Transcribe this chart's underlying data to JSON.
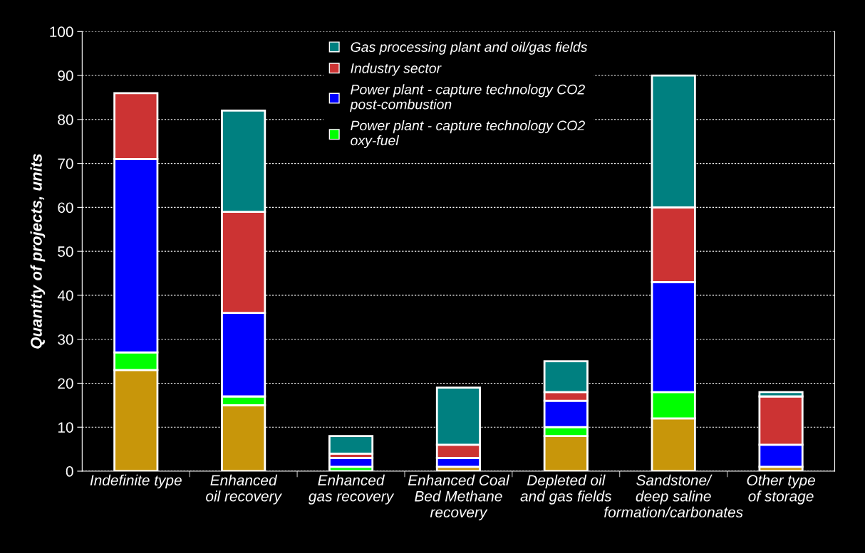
{
  "chart_data": {
    "type": "bar",
    "stacked": true,
    "ylabel": "Quantity of projects, units",
    "categories": [
      "Indefinite type",
      "Enhanced\noil recovery",
      "Enhanced\ngas recovery",
      "Enhanced Coal\nBed Methane\nrecovery",
      "Depleted oil\nand gas fields",
      "Sandstone/\ndeep saline\nformation/carbonates",
      "Other type\nof storage"
    ],
    "series": [
      {
        "color": "#c8960a",
        "values": [
          23,
          15,
          0,
          1,
          8,
          12,
          1
        ]
      },
      {
        "name": "Power plant - capture technology CO2\noxy-fuel",
        "color": "#00ff00",
        "values": [
          4,
          2,
          1,
          0,
          2,
          6,
          0
        ]
      },
      {
        "name": "Power plant - capture technology CO2\npost-combustion",
        "color": "#0000ff",
        "values": [
          44,
          19,
          2,
          2,
          6,
          25,
          5
        ]
      },
      {
        "name": "Industry sector",
        "color": "#cc3333",
        "values": [
          15,
          23,
          1,
          3,
          2,
          17,
          11
        ]
      },
      {
        "name": "Gas processing plant and oil/gas fields",
        "color": "#008080",
        "values": [
          0,
          23,
          4,
          13,
          7,
          30,
          1
        ]
      }
    ],
    "ylim": [
      0,
      100
    ],
    "yticks": [
      0,
      10,
      20,
      30,
      40,
      50,
      60,
      70,
      80,
      90,
      100
    ],
    "grid": "y",
    "legend": "top"
  }
}
